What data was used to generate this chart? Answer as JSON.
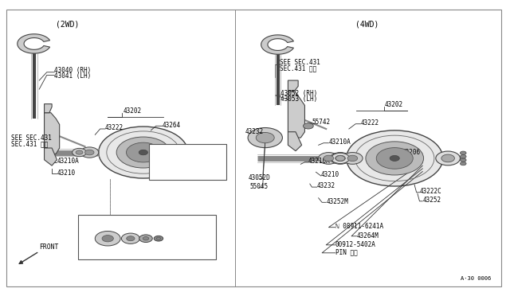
{
  "bg_color": "#ffffff",
  "text_color": "#000000",
  "fig_width": 6.4,
  "fig_height": 3.72,
  "title_2wd": "(2WD)",
  "title_4wd": "(4WD)",
  "front_label": "FRONT",
  "diagram_note": "A·30 0006"
}
